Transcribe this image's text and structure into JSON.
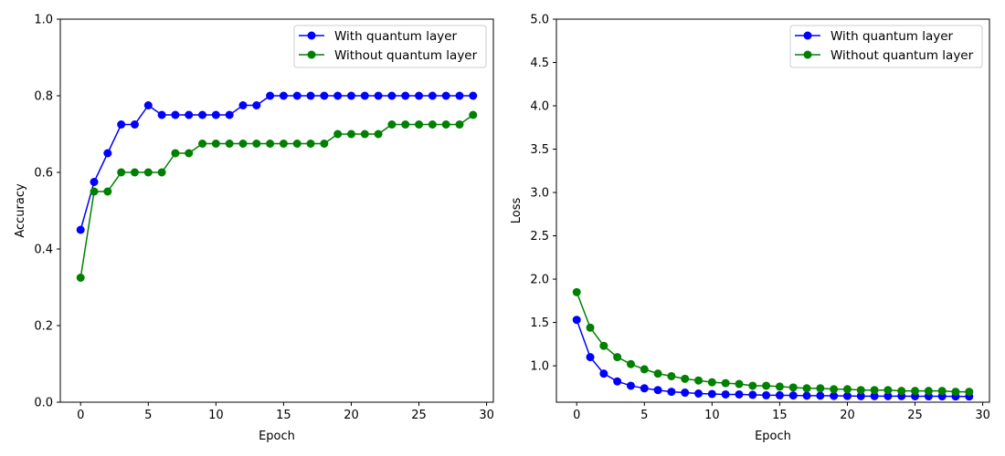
{
  "chart_data": [
    {
      "type": "line",
      "title": "",
      "xlabel": "Epoch",
      "ylabel": "Accuracy",
      "xlim": [
        -1.5,
        30.5
      ],
      "ylim": [
        0.0,
        1.0
      ],
      "xticks": [
        0,
        5,
        10,
        15,
        20,
        25,
        30
      ],
      "yticks": [
        0.0,
        0.2,
        0.4,
        0.6,
        0.8,
        1.0
      ],
      "xtick_labels": [
        "0",
        "5",
        "10",
        "15",
        "20",
        "25",
        "30"
      ],
      "ytick_labels": [
        "0.0",
        "0.2",
        "0.4",
        "0.6",
        "0.8",
        "1.0"
      ],
      "grid": false,
      "legend_position": "top-right",
      "x": [
        0,
        1,
        2,
        3,
        4,
        5,
        6,
        7,
        8,
        9,
        10,
        11,
        12,
        13,
        14,
        15,
        16,
        17,
        18,
        19,
        20,
        21,
        22,
        23,
        24,
        25,
        26,
        27,
        28,
        29
      ],
      "series": [
        {
          "name": "With quantum layer",
          "color": "#0000ff",
          "marker": "circle",
          "values": [
            0.45,
            0.575,
            0.65,
            0.725,
            0.725,
            0.775,
            0.75,
            0.75,
            0.75,
            0.75,
            0.75,
            0.75,
            0.775,
            0.775,
            0.8,
            0.8,
            0.8,
            0.8,
            0.8,
            0.8,
            0.8,
            0.8,
            0.8,
            0.8,
            0.8,
            0.8,
            0.8,
            0.8,
            0.8,
            0.8
          ]
        },
        {
          "name": "Without quantum layer",
          "color": "#008000",
          "marker": "circle",
          "values": [
            0.325,
            0.55,
            0.55,
            0.6,
            0.6,
            0.6,
            0.6,
            0.65,
            0.65,
            0.675,
            0.675,
            0.675,
            0.675,
            0.675,
            0.675,
            0.675,
            0.675,
            0.675,
            0.675,
            0.7,
            0.7,
            0.7,
            0.7,
            0.725,
            0.725,
            0.725,
            0.725,
            0.725,
            0.725,
            0.75
          ]
        }
      ]
    },
    {
      "type": "line",
      "title": "",
      "xlabel": "Epoch",
      "ylabel": "Loss",
      "xlim": [
        -1.5,
        30.5
      ],
      "ylim": [
        0.58,
        5.0
      ],
      "xticks": [
        0,
        5,
        10,
        15,
        20,
        25,
        30
      ],
      "yticks": [
        1.0,
        1.5,
        2.0,
        2.5,
        3.0,
        3.5,
        4.0,
        4.5,
        5.0
      ],
      "xtick_labels": [
        "0",
        "5",
        "10",
        "15",
        "20",
        "25",
        "30"
      ],
      "ytick_labels": [
        "1.0",
        "1.5",
        "2.0",
        "2.5",
        "3.0",
        "3.5",
        "4.0",
        "4.5",
        "5.0"
      ],
      "grid": false,
      "legend_position": "top-right",
      "x": [
        0,
        1,
        2,
        3,
        4,
        5,
        6,
        7,
        8,
        9,
        10,
        11,
        12,
        13,
        14,
        15,
        16,
        17,
        18,
        19,
        20,
        21,
        22,
        23,
        24,
        25,
        26,
        27,
        28,
        29
      ],
      "series": [
        {
          "name": "With quantum layer",
          "color": "#0000ff",
          "marker": "circle",
          "values": [
            1.53,
            1.1,
            0.91,
            0.82,
            0.77,
            0.74,
            0.72,
            0.7,
            0.69,
            0.68,
            0.675,
            0.67,
            0.67,
            0.665,
            0.66,
            0.66,
            0.658,
            0.655,
            0.655,
            0.653,
            0.652,
            0.65,
            0.65,
            0.65,
            0.65,
            0.649,
            0.648,
            0.648,
            0.647,
            0.646
          ]
        },
        {
          "name": "Without quantum layer",
          "color": "#008000",
          "marker": "circle",
          "values": [
            1.85,
            1.44,
            1.23,
            1.1,
            1.02,
            0.96,
            0.91,
            0.88,
            0.85,
            0.83,
            0.81,
            0.8,
            0.79,
            0.77,
            0.77,
            0.76,
            0.75,
            0.74,
            0.74,
            0.73,
            0.73,
            0.72,
            0.72,
            0.72,
            0.71,
            0.71,
            0.71,
            0.71,
            0.7,
            0.7
          ]
        }
      ]
    }
  ]
}
